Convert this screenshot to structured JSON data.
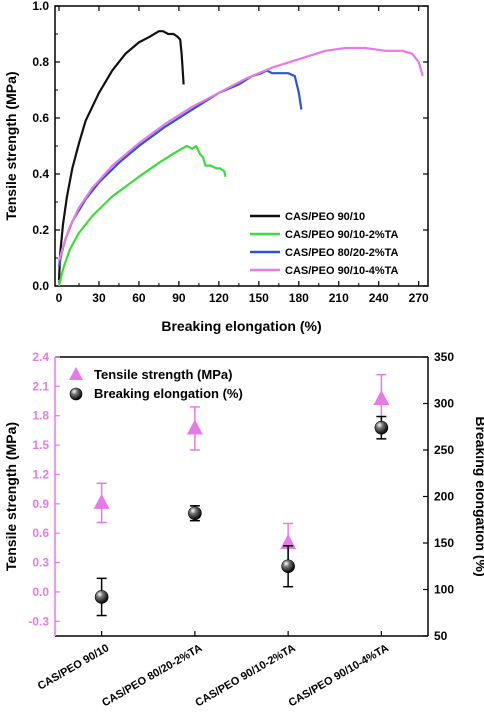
{
  "chart_data": [
    {
      "type": "line",
      "xlabel": "Breaking elongation (%)",
      "ylabel": "Tensile strength (MPa)",
      "xlim": [
        -3,
        277
      ],
      "ylim": [
        0,
        1.0
      ],
      "xticks": [
        "0",
        "30",
        "60",
        "90",
        "120",
        "150",
        "180",
        "210",
        "240",
        "270"
      ],
      "yticks": [
        "0.0",
        "0.2",
        "0.4",
        "0.6",
        "0.8",
        "1.0"
      ],
      "legend_position": "lower-right",
      "series": [
        {
          "name": "CAS/PEO 90/10",
          "color": "#111111",
          "points": [
            [
              0,
              0.02
            ],
            [
              1,
              0.12
            ],
            [
              3,
              0.22
            ],
            [
              6,
              0.32
            ],
            [
              10,
              0.42
            ],
            [
              15,
              0.51
            ],
            [
              20,
              0.59
            ],
            [
              30,
              0.69
            ],
            [
              40,
              0.77
            ],
            [
              50,
              0.83
            ],
            [
              60,
              0.87
            ],
            [
              68,
              0.89
            ],
            [
              75,
              0.91
            ],
            [
              78,
              0.91
            ],
            [
              82,
              0.9
            ],
            [
              86,
              0.9
            ],
            [
              89,
              0.89
            ],
            [
              91,
              0.88
            ],
            [
              92,
              0.83
            ],
            [
              93,
              0.76
            ],
            [
              93.5,
              0.72
            ]
          ]
        },
        {
          "name": "CAS/PEO 90/10-2%TA",
          "color": "#3cdc3c",
          "points": [
            [
              0,
              0.0
            ],
            [
              3,
              0.06
            ],
            [
              8,
              0.13
            ],
            [
              15,
              0.19
            ],
            [
              25,
              0.25
            ],
            [
              40,
              0.32
            ],
            [
              60,
              0.39
            ],
            [
              75,
              0.44
            ],
            [
              85,
              0.47
            ],
            [
              92,
              0.49
            ],
            [
              96,
              0.5
            ],
            [
              100,
              0.49
            ],
            [
              103,
              0.5
            ],
            [
              106,
              0.47
            ],
            [
              108,
              0.46
            ],
            [
              110,
              0.43
            ],
            [
              114,
              0.43
            ],
            [
              118,
              0.42
            ],
            [
              121,
              0.42
            ],
            [
              124,
              0.41
            ],
            [
              125,
              0.39
            ]
          ]
        },
        {
          "name": "CAS/PEO 80/20-2%TA",
          "color": "#2a55d6",
          "points": [
            [
              0,
              0.07
            ],
            [
              2,
              0.12
            ],
            [
              5,
              0.17
            ],
            [
              10,
              0.23
            ],
            [
              20,
              0.31
            ],
            [
              30,
              0.37
            ],
            [
              45,
              0.44
            ],
            [
              60,
              0.5
            ],
            [
              80,
              0.57
            ],
            [
              100,
              0.63
            ],
            [
              120,
              0.69
            ],
            [
              135,
              0.72
            ],
            [
              145,
              0.75
            ],
            [
              152,
              0.76
            ],
            [
              156,
              0.77
            ],
            [
              160,
              0.76
            ],
            [
              166,
              0.76
            ],
            [
              172,
              0.76
            ],
            [
              177,
              0.75
            ],
            [
              180,
              0.69
            ],
            [
              182,
              0.63
            ]
          ]
        },
        {
          "name": "CAS/PEO 90/10-4%TA",
          "color": "#e87ae8",
          "points": [
            [
              0,
              0.09
            ],
            [
              3,
              0.14
            ],
            [
              8,
              0.21
            ],
            [
              15,
              0.28
            ],
            [
              25,
              0.35
            ],
            [
              40,
              0.43
            ],
            [
              60,
              0.51
            ],
            [
              80,
              0.58
            ],
            [
              100,
              0.64
            ],
            [
              120,
              0.69
            ],
            [
              140,
              0.74
            ],
            [
              160,
              0.78
            ],
            [
              180,
              0.81
            ],
            [
              200,
              0.84
            ],
            [
              215,
              0.85
            ],
            [
              230,
              0.85
            ],
            [
              245,
              0.84
            ],
            [
              258,
              0.84
            ],
            [
              265,
              0.83
            ],
            [
              270,
              0.8
            ],
            [
              273,
              0.75
            ]
          ]
        }
      ]
    },
    {
      "type": "scatter",
      "categories": [
        "CAS/PEO 90/10",
        "CAS/PEO 80/20-2%TA",
        "CAS/PEO 90/10-2%TA",
        "CAS/PEO 90/10-4%TA"
      ],
      "ylabel_left": "Tensile strength (MPa)",
      "ylabel_right": "Breaking elongation (%)",
      "ylim_left": [
        -0.45,
        2.4
      ],
      "ylim_right": [
        50,
        350
      ],
      "yticks_left": [
        "-0.3",
        "0.0",
        "0.3",
        "0.6",
        "0.9",
        "1.2",
        "1.5",
        "1.8",
        "2.1",
        "2.4"
      ],
      "yticks_right": [
        "50",
        "100",
        "150",
        "200",
        "250",
        "300",
        "350"
      ],
      "legend_position": "top-left",
      "series": [
        {
          "name": "Tensile strength (MPa)",
          "axis": "left",
          "marker": "triangle",
          "color": "#e87ae8",
          "values": [
            0.91,
            1.67,
            0.5,
            1.97
          ],
          "errors": [
            0.2,
            0.22,
            0.2,
            0.25
          ]
        },
        {
          "name": "Breaking elongation (%)",
          "axis": "right",
          "marker": "sphere",
          "color": "#222222",
          "values": [
            92,
            182,
            125,
            274
          ],
          "errors": [
            20,
            8,
            22,
            12
          ]
        }
      ]
    }
  ]
}
